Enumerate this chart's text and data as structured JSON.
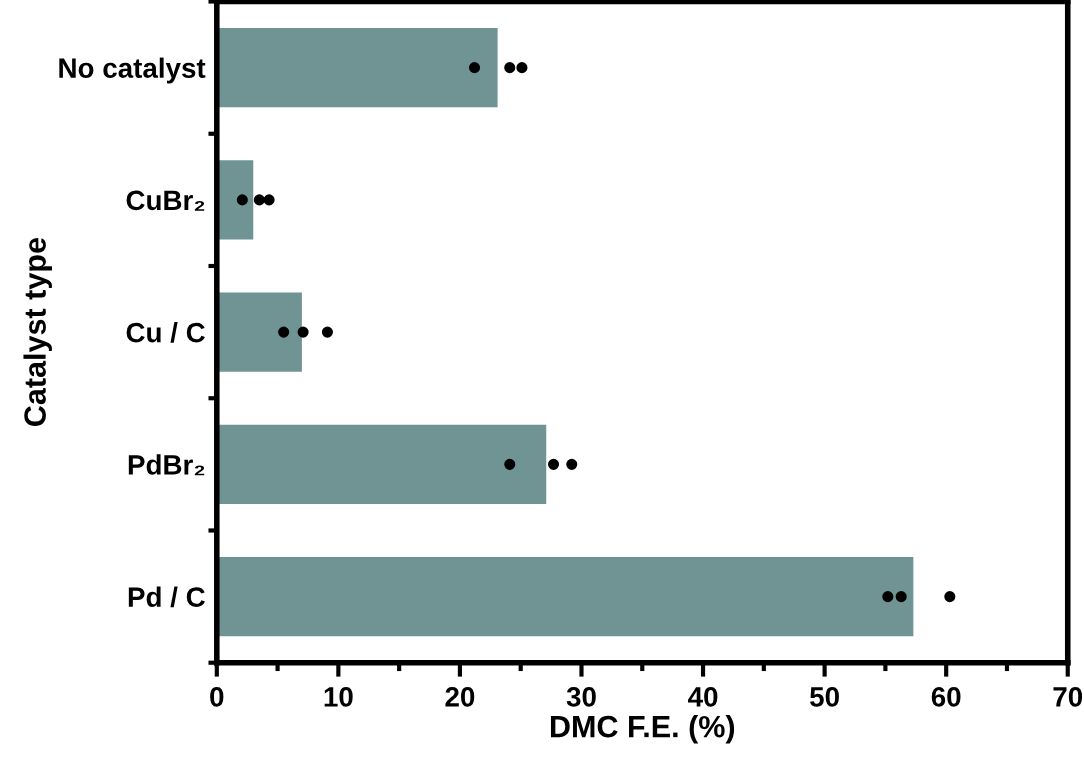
{
  "chart_data": {
    "type": "bar",
    "orientation": "horizontal",
    "xlabel": "DMC F.E. (%)",
    "ylabel": "Catalyst type",
    "categories": [
      "No catalyst",
      "CuBr₂",
      "Cu / C",
      "PdBr₂",
      "Pd / C"
    ],
    "xlim": [
      0,
      70
    ],
    "xticks": [
      0,
      10,
      20,
      30,
      40,
      50,
      60,
      70
    ],
    "grid": false,
    "legend": false,
    "series": [
      {
        "type": "bar",
        "color": "#6f9493",
        "values": [
          23.1,
          3.0,
          7.0,
          27.1,
          57.3
        ]
      },
      {
        "type": "scatter",
        "color": "#000000",
        "marker": "circle",
        "x": [
          "No catalyst",
          "CuBr₂",
          "Cu / C",
          "PdBr₂",
          "Pd / C"
        ],
        "values": [
          21.2,
          2.1,
          5.5,
          24.1,
          55.2
        ]
      },
      {
        "type": "scatter",
        "color": "#000000",
        "marker": "circle",
        "x": [
          "No catalyst",
          "CuBr₂",
          "Cu / C",
          "PdBr₂",
          "Pd / C"
        ],
        "values": [
          24.1,
          3.5,
          7.1,
          27.7,
          56.3
        ]
      },
      {
        "type": "scatter",
        "color": "#000000",
        "marker": "circle",
        "x": [
          "No catalyst",
          "CuBr₂",
          "Cu / C",
          "PdBr₂",
          "Pd / C"
        ],
        "values": [
          25.1,
          4.3,
          9.1,
          29.2,
          60.3
        ]
      }
    ]
  }
}
